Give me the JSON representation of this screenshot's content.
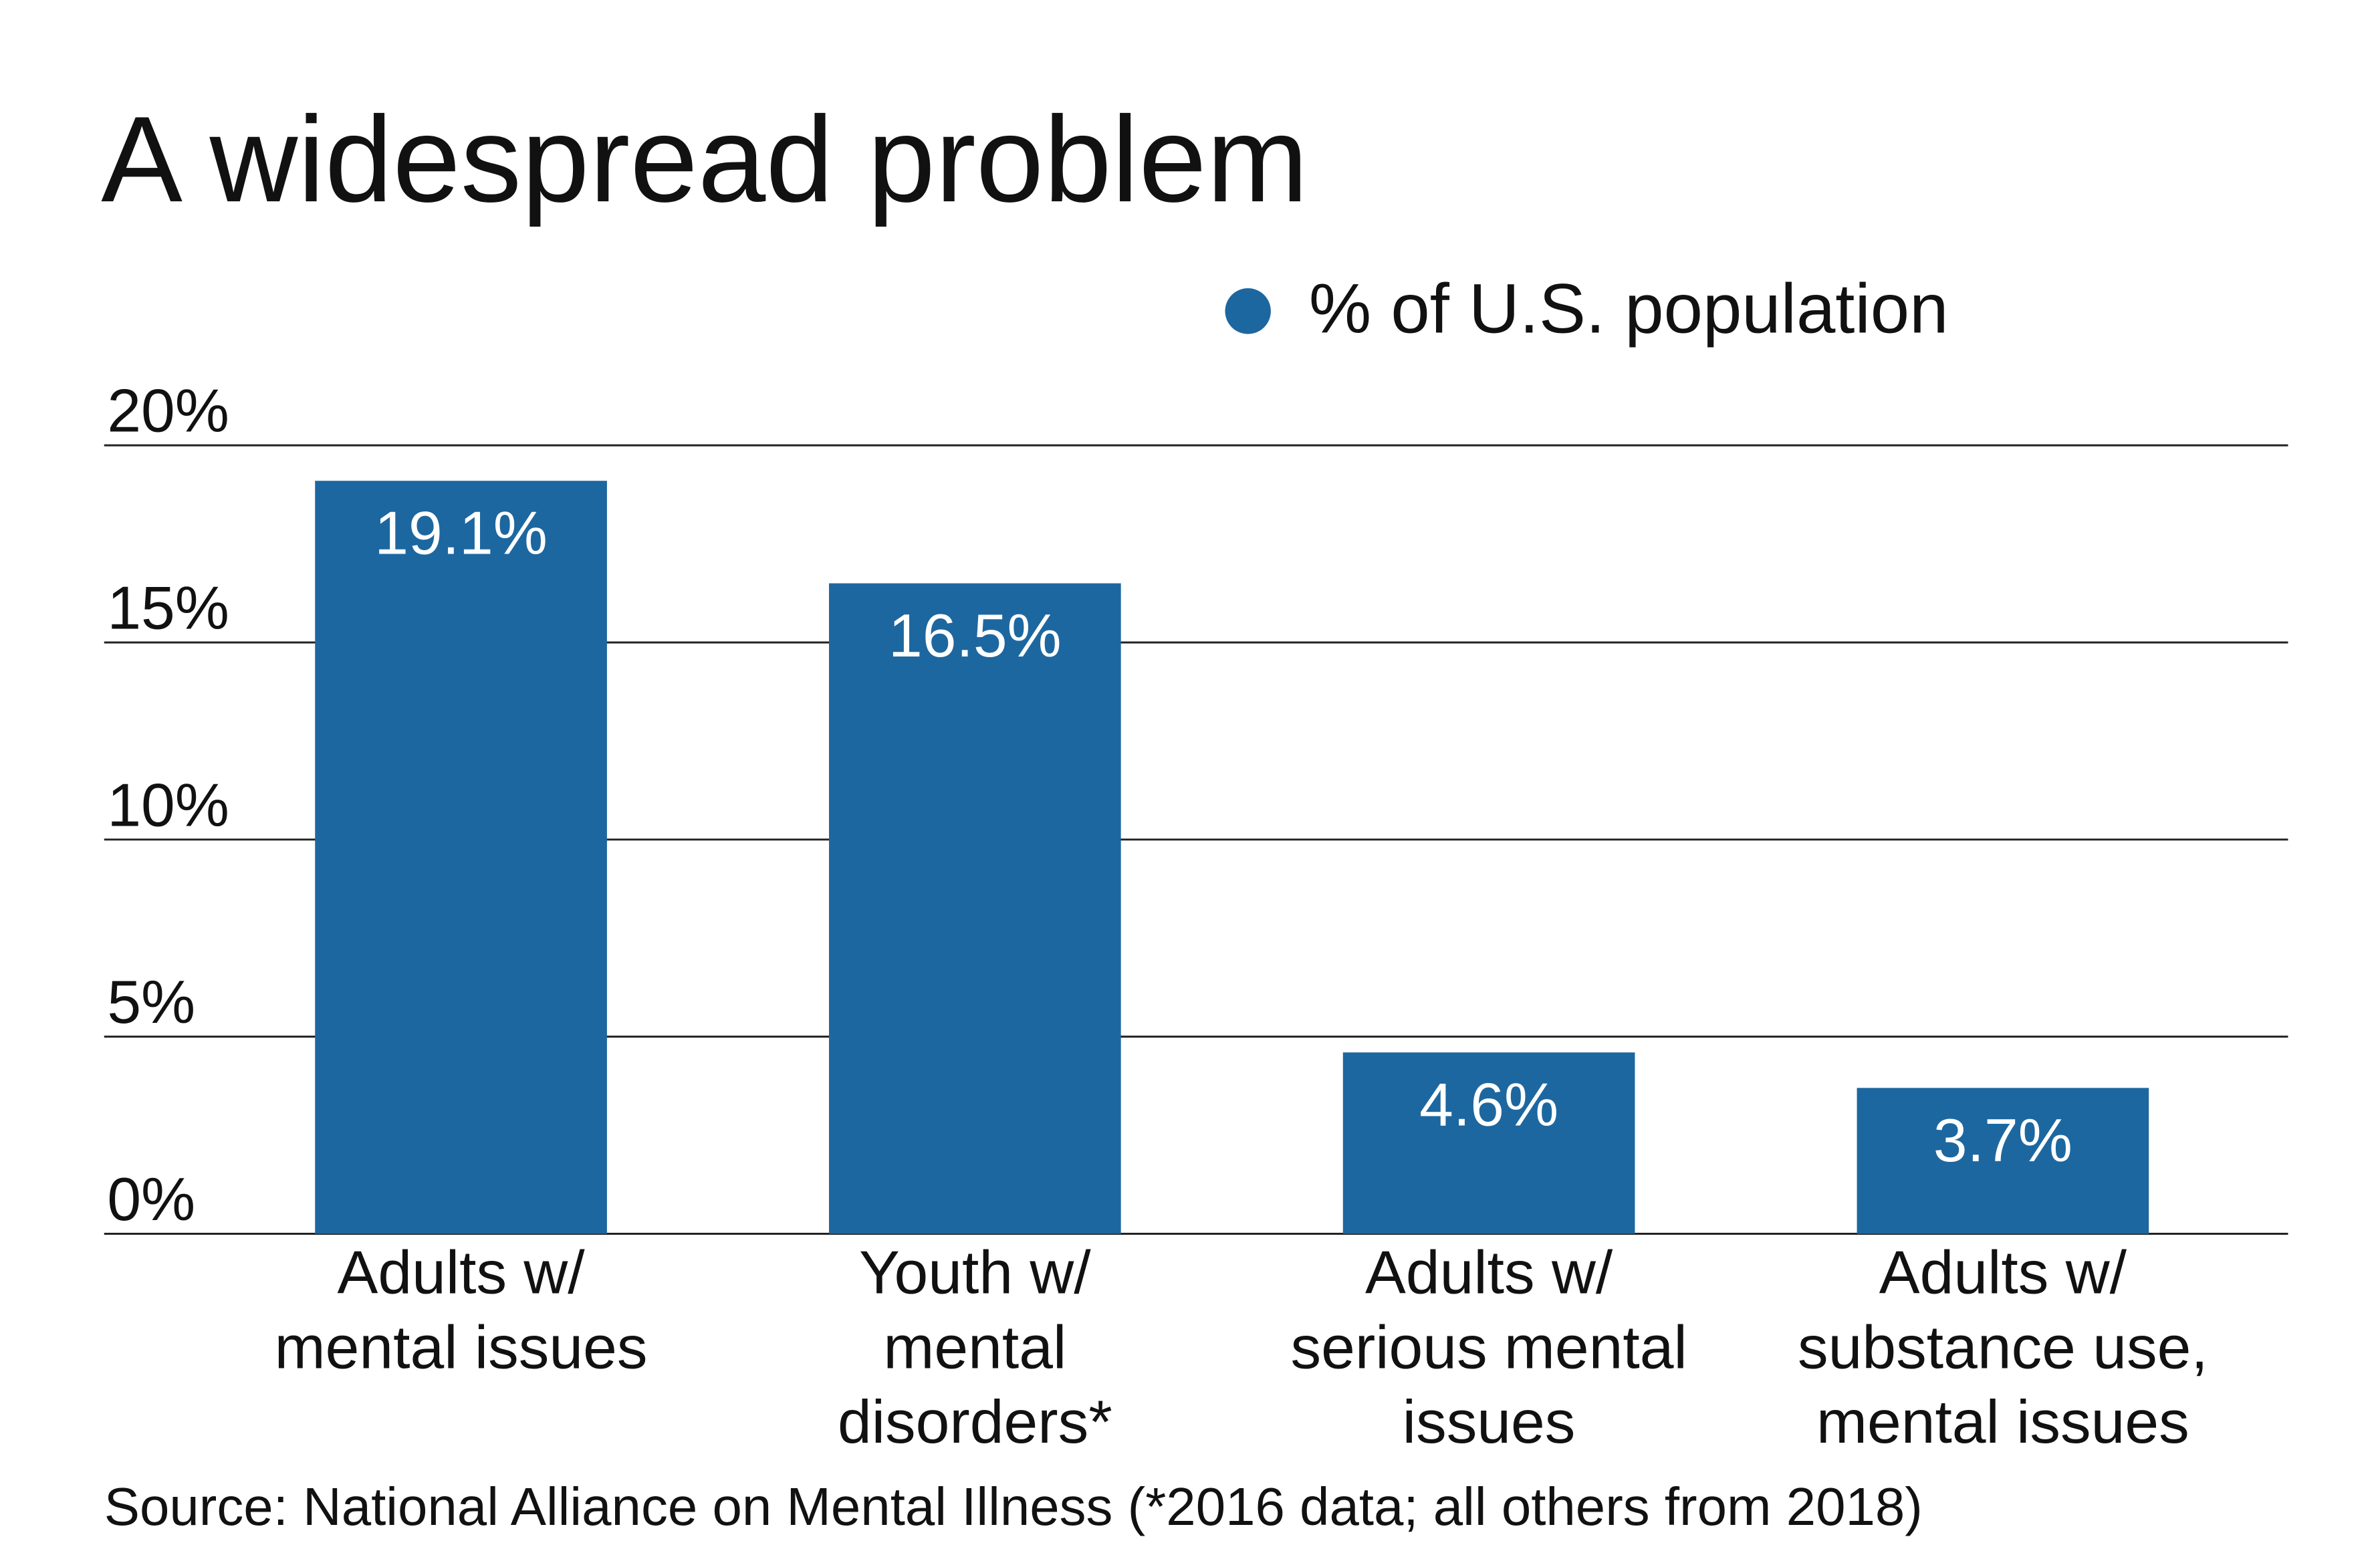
{
  "chart_data": {
    "type": "bar",
    "title": "A widespread problem",
    "categories": [
      [
        "Adults w/",
        "mental issues"
      ],
      [
        "Youth w/",
        "mental",
        "disorders*"
      ],
      [
        "Adults w/",
        "serious mental",
        "issues"
      ],
      [
        "Adults w/",
        "substance use,",
        "mental issues"
      ]
    ],
    "series": [
      {
        "name": "% of U.S. population",
        "color": "#1d67a0",
        "values": [
          19.1,
          16.5,
          4.6,
          3.7
        ],
        "value_labels": [
          "19.1%",
          "16.5%",
          "4.6%",
          "3.7%"
        ]
      }
    ],
    "ylim": [
      0,
      20
    ],
    "yticks": [
      {
        "value": 0,
        "label": "0%"
      },
      {
        "value": 5,
        "label": "5%"
      },
      {
        "value": 10,
        "label": "10%"
      },
      {
        "value": 15,
        "label": "15%"
      },
      {
        "value": 20,
        "label": "20%"
      }
    ],
    "grid": true,
    "legend": "top-right",
    "source": "Source: National Alliance on Mental Illness (*2016 data; all others from 2018)"
  }
}
